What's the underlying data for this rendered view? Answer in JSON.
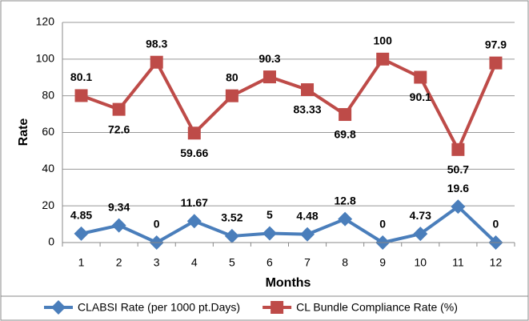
{
  "chart_data": {
    "type": "line",
    "x_label": "Months",
    "y_label": "Rate",
    "categories": [
      "1",
      "2",
      "3",
      "4",
      "5",
      "6",
      "7",
      "8",
      "9",
      "10",
      "11",
      "12"
    ],
    "series": [
      {
        "name": "CLABSI Rate (per 1000 pt.Days)",
        "color": "#4a7ebb",
        "marker": "diamond",
        "values": [
          4.85,
          9.34,
          0,
          11.67,
          3.52,
          5,
          4.48,
          12.8,
          0,
          4.73,
          19.6,
          0
        ]
      },
      {
        "name": "CL Bundle Compliance Rate (%)",
        "color": "#be4b48",
        "marker": "square",
        "values": [
          80.1,
          72.6,
          98.3,
          59.66,
          80,
          90.3,
          83.33,
          69.8,
          100,
          90.1,
          50.7,
          97.9
        ]
      }
    ],
    "ylim": [
      0,
      120
    ],
    "yticks": [
      0,
      20,
      40,
      60,
      80,
      100,
      120
    ],
    "grid": true,
    "legend": "bottom"
  }
}
